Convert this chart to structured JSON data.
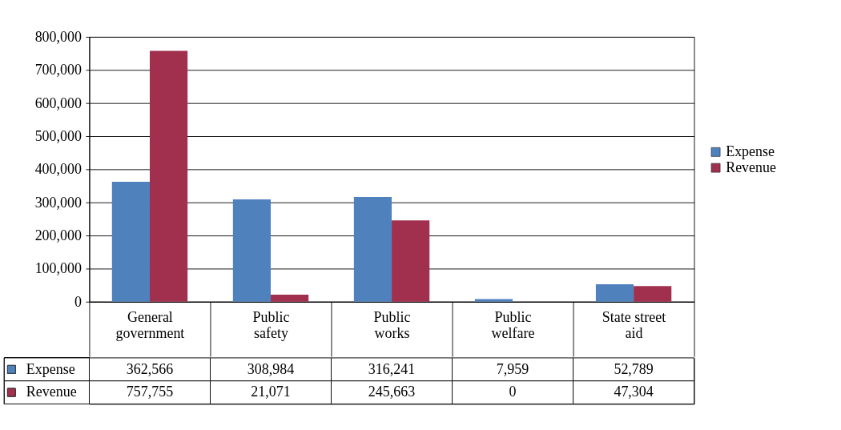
{
  "chart_data": {
    "type": "bar",
    "categories": [
      "General government",
      "Public safety",
      "Public works",
      "Public welfare",
      "State street aid"
    ],
    "series": [
      {
        "name": "Expense",
        "color": "#4f81bd",
        "values": [
          362566,
          308984,
          316241,
          7959,
          52789
        ],
        "value_labels": [
          "362,566",
          "308,984",
          "316,241",
          "7,959",
          "52,789"
        ]
      },
      {
        "name": "Revenue",
        "color": "#a0304e",
        "values": [
          757755,
          21071,
          245663,
          0,
          47304
        ],
        "value_labels": [
          "757,755",
          "21,071",
          "245,663",
          "0",
          "47,304"
        ]
      }
    ],
    "ylim": [
      0,
      800000
    ],
    "yticks": [
      0,
      {
        "value": 100000,
        "label": "100,000"
      },
      {
        "value": 200000,
        "label": "200,000"
      },
      {
        "value": 300000,
        "label": "300,000"
      },
      {
        "value": 400000,
        "label": "400,000"
      },
      {
        "value": 500000,
        "label": "500,000"
      },
      {
        "value": 600000,
        "label": "600,000"
      },
      {
        "value": 700000,
        "label": "700,000"
      },
      {
        "value": 800000,
        "label": "800,000"
      }
    ],
    "grid": "y",
    "legend": "right"
  }
}
